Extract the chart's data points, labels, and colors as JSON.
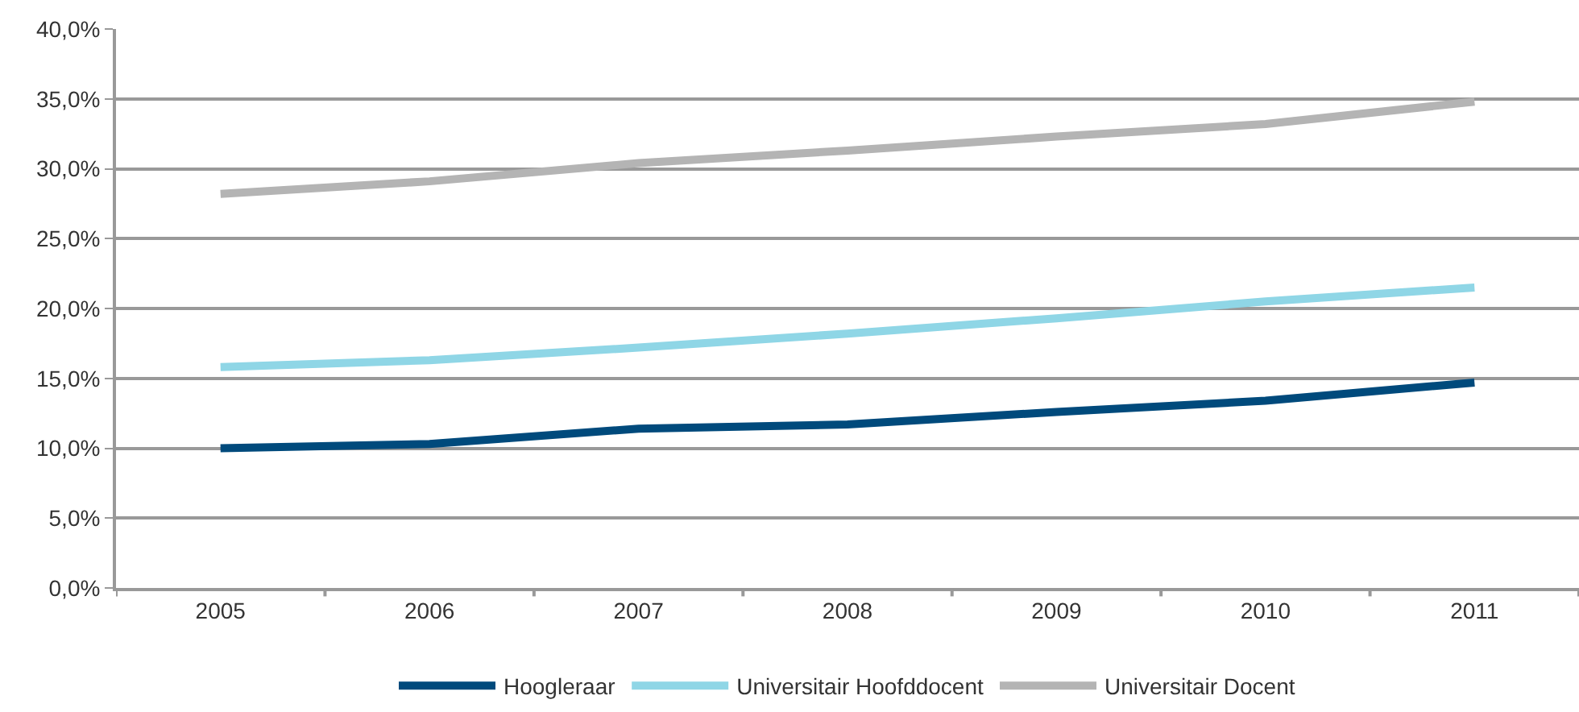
{
  "chart_data": {
    "type": "line",
    "categories": [
      "2005",
      "2006",
      "2007",
      "2008",
      "2009",
      "2010",
      "2011"
    ],
    "series": [
      {
        "name": "Hoogleraar",
        "color": "#004a7c",
        "values": [
          10.0,
          10.3,
          11.4,
          11.7,
          12.6,
          13.4,
          14.7
        ]
      },
      {
        "name": "Universitair Hoofddocent",
        "color": "#8fd6e6",
        "values": [
          15.8,
          16.3,
          17.2,
          18.2,
          19.3,
          20.5,
          21.5
        ]
      },
      {
        "name": "Universitair Docent",
        "color": "#b4b4b4",
        "values": [
          28.2,
          29.1,
          30.4,
          31.3,
          32.3,
          33.2,
          34.8
        ]
      }
    ],
    "ylim": [
      0,
      40
    ],
    "yticks": [
      {
        "value": 0,
        "label": "0,0%"
      },
      {
        "value": 5,
        "label": "5,0%"
      },
      {
        "value": 10,
        "label": "10,0%"
      },
      {
        "value": 15,
        "label": "15,0%"
      },
      {
        "value": 20,
        "label": "20,0%"
      },
      {
        "value": 25,
        "label": "25,0%"
      },
      {
        "value": 30,
        "label": "30,0%"
      },
      {
        "value": 35,
        "label": "35,0%"
      },
      {
        "value": 40,
        "label": "40,0%"
      }
    ],
    "grid": "y",
    "legend": "bottom",
    "marker": "none",
    "line_style": "solid"
  }
}
